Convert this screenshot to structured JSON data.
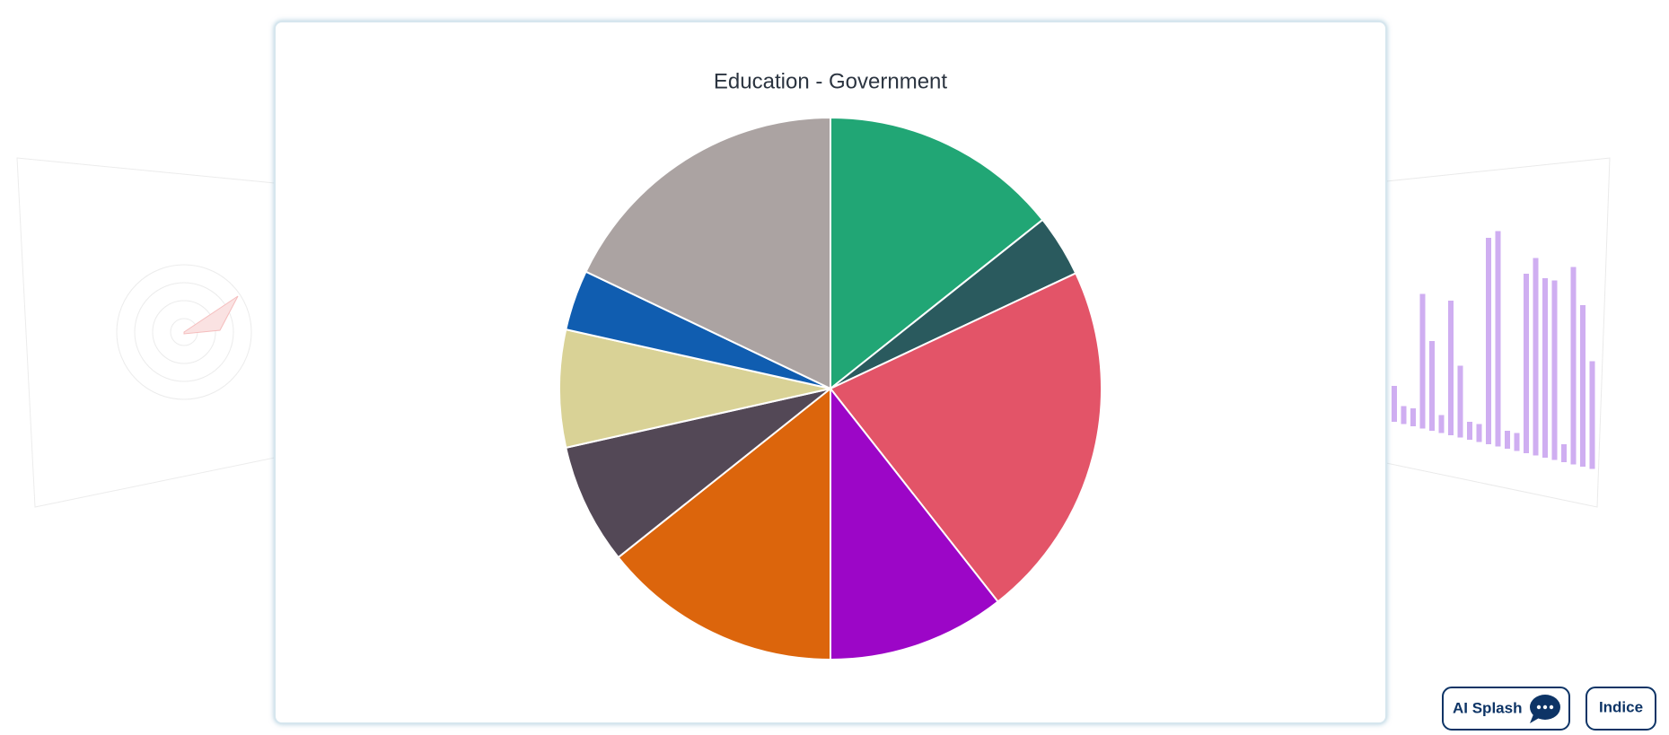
{
  "chart_data": {
    "type": "pie",
    "title": "Education - Government",
    "values": [
      14.3,
      3.7,
      21.4,
      10.6,
      14.3,
      7.2,
      7.0,
      3.6,
      17.9
    ],
    "colors": [
      "#21a675",
      "#2a5a5e",
      "#e35468",
      "#9c06c7",
      "#dc650c",
      "#534856",
      "#d9d296",
      "#105db0",
      "#aba3a2"
    ]
  },
  "buttons": {
    "ai_splash": "AI Splash",
    "indice": "Indice"
  }
}
